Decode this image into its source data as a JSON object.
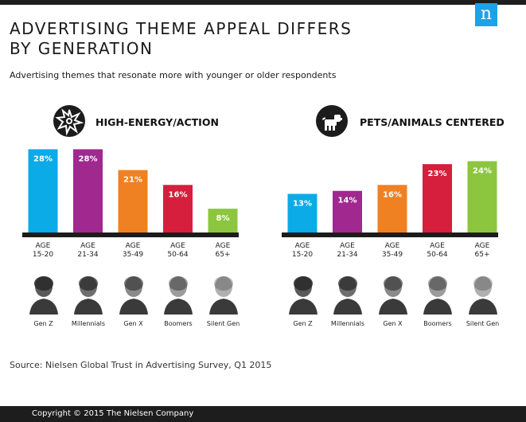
{
  "header": {
    "brand_letter": "n",
    "title_line1": "ADVERTISING THEME APPEAL DIFFERS",
    "title_line2": "BY GENERATION",
    "subtitle": "Advertising themes that resonate more with younger or older respondents"
  },
  "source": "Source: Nielsen Global Trust in Advertising Survey, Q1 2015",
  "copyright": "Copyright © 2015 The Nielsen Company",
  "generations": [
    "Gen Z",
    "Millennials",
    "Gen X",
    "Boomers",
    "Silent Gen"
  ],
  "chart_data": [
    {
      "type": "bar",
      "title": "HIGH-ENERGY/ACTION",
      "icon": "starburst-icon",
      "categories": [
        [
          "AGE",
          "15-20"
        ],
        [
          "AGE",
          "21-34"
        ],
        [
          "AGE",
          "35-49"
        ],
        [
          "AGE",
          "50-64"
        ],
        [
          "AGE",
          "65+"
        ]
      ],
      "values": [
        28,
        28,
        21,
        16,
        8
      ],
      "value_labels": [
        "28%",
        "28%",
        "21%",
        "16%",
        "8%"
      ],
      "ylim": [
        0,
        30
      ],
      "colors": [
        "#0aabe6",
        "#a0288f",
        "#f08122",
        "#d51f3d",
        "#8cc63e"
      ],
      "xlabel": "",
      "ylabel": "",
      "grid": false,
      "legend": "none"
    },
    {
      "type": "bar",
      "title": "PETS/ANIMALS CENTERED",
      "icon": "dog-icon",
      "categories": [
        [
          "AGE",
          "15-20"
        ],
        [
          "AGE",
          "21-34"
        ],
        [
          "AGE",
          "35-49"
        ],
        [
          "AGE",
          "50-64"
        ],
        [
          "AGE",
          "65+"
        ]
      ],
      "values": [
        13,
        14,
        16,
        23,
        24
      ],
      "value_labels": [
        "13%",
        "14%",
        "16%",
        "23%",
        "24%"
      ],
      "ylim": [
        0,
        30
      ],
      "colors": [
        "#0aabe6",
        "#a0288f",
        "#f08122",
        "#d51f3d",
        "#8cc63e"
      ],
      "xlabel": "",
      "ylabel": "",
      "grid": false,
      "legend": "none"
    }
  ],
  "colors": {
    "baseline": "#1c1c1c",
    "brand": "#1aa3e8",
    "dark": "#1d1d1d"
  }
}
